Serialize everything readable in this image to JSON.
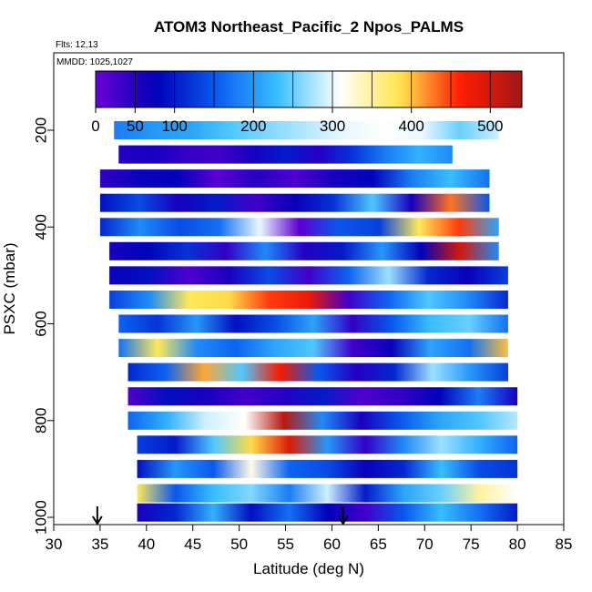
{
  "chart_data": {
    "type": "heatmap",
    "title": "ATOM3 Northeast_Pacific_2 Npos_PALMS",
    "flights_label": "Flts: 12,13",
    "dates_label": "MMDD: 1025,1027",
    "xlabel": "Latitude (deg N)",
    "ylabel": "PSXC (mbar)",
    "xlim": [
      30,
      85
    ],
    "ylim": [
      1015,
      40
    ],
    "xticks": [
      "30",
      "35",
      "40",
      "45",
      "50",
      "55",
      "60",
      "65",
      "70",
      "75",
      "80",
      "85"
    ],
    "yticks": [
      "200",
      "400",
      "600",
      "800",
      "1000"
    ],
    "colorbar": {
      "range": [
        0,
        540
      ],
      "ticks": [
        "0",
        "50",
        "100",
        "200",
        "300",
        "400",
        "500"
      ],
      "colors": [
        "#6a00d6",
        "#0000b8",
        "#0a5cf0",
        "#39c0ff",
        "#ffffff",
        "#ffe64d",
        "#ff1a00",
        "#a01818"
      ]
    },
    "markers": [
      {
        "label": "",
        "lat": 34.7
      },
      {
        "label": "",
        "lat": 61.2
      }
    ],
    "bands": [
      {
        "p": 200,
        "lat": [
          36.5,
          78
        ],
        "values": [
          180,
          200,
          210,
          240,
          260,
          280,
          300,
          310,
          300,
          250,
          290
        ]
      },
      {
        "p": 250,
        "lat": [
          37,
          73
        ],
        "values": [
          50,
          60,
          40,
          30,
          60,
          100,
          50,
          120,
          180,
          220,
          190
        ]
      },
      {
        "p": 300,
        "lat": [
          35,
          77
        ],
        "values": [
          40,
          70,
          80,
          10,
          50,
          20,
          60,
          80,
          180,
          230,
          170
        ]
      },
      {
        "p": 350,
        "lat": [
          35,
          77
        ],
        "values": [
          90,
          140,
          60,
          100,
          30,
          70,
          120,
          240,
          60,
          430,
          150
        ]
      },
      {
        "p": 400,
        "lat": [
          35,
          78
        ],
        "values": [
          110,
          190,
          140,
          170,
          300,
          10,
          150,
          130,
          380,
          450,
          210
        ]
      },
      {
        "p": 450,
        "lat": [
          36,
          78
        ],
        "values": [
          60,
          80,
          120,
          40,
          190,
          50,
          100,
          200,
          80,
          500,
          190
        ]
      },
      {
        "p": 500,
        "lat": [
          36,
          79
        ],
        "values": [
          70,
          90,
          20,
          60,
          140,
          30,
          160,
          270,
          110,
          70,
          130
        ]
      },
      {
        "p": 550,
        "lat": [
          36,
          79
        ],
        "values": [
          130,
          190,
          380,
          390,
          450,
          480,
          30,
          160,
          240,
          190,
          110
        ]
      },
      {
        "p": 600,
        "lat": [
          37,
          79
        ],
        "values": [
          160,
          120,
          200,
          90,
          140,
          210,
          40,
          150,
          230,
          250,
          170
        ]
      },
      {
        "p": 650,
        "lat": [
          37,
          79
        ],
        "values": [
          170,
          380,
          190,
          160,
          210,
          240,
          30,
          70,
          210,
          170,
          400
        ]
      },
      {
        "p": 700,
        "lat": [
          38,
          79
        ],
        "values": [
          110,
          160,
          410,
          240,
          470,
          150,
          50,
          110,
          270,
          200,
          130
        ]
      },
      {
        "p": 750,
        "lat": [
          38,
          80
        ],
        "values": [
          20,
          90,
          60,
          30,
          50,
          100,
          20,
          40,
          80,
          180,
          60
        ]
      },
      {
        "p": 800,
        "lat": [
          38,
          80
        ],
        "values": [
          160,
          220,
          290,
          310,
          520,
          190,
          60,
          150,
          210,
          240,
          280
        ]
      },
      {
        "p": 850,
        "lat": [
          39,
          80
        ],
        "values": [
          130,
          100,
          240,
          390,
          490,
          200,
          40,
          190,
          270,
          220,
          160
        ]
      },
      {
        "p": 900,
        "lat": [
          39,
          80
        ],
        "values": [
          90,
          200,
          150,
          320,
          160,
          140,
          70,
          110,
          230,
          140,
          120
        ]
      },
      {
        "p": 950,
        "lat": [
          39,
          80
        ],
        "values": [
          380,
          150,
          230,
          260,
          180,
          290,
          100,
          210,
          250,
          350,
          310
        ]
      },
      {
        "p": 990,
        "lat": [
          39,
          80
        ],
        "values": [
          60,
          110,
          220,
          90,
          170,
          80,
          30,
          150,
          230,
          170,
          100
        ]
      }
    ]
  }
}
